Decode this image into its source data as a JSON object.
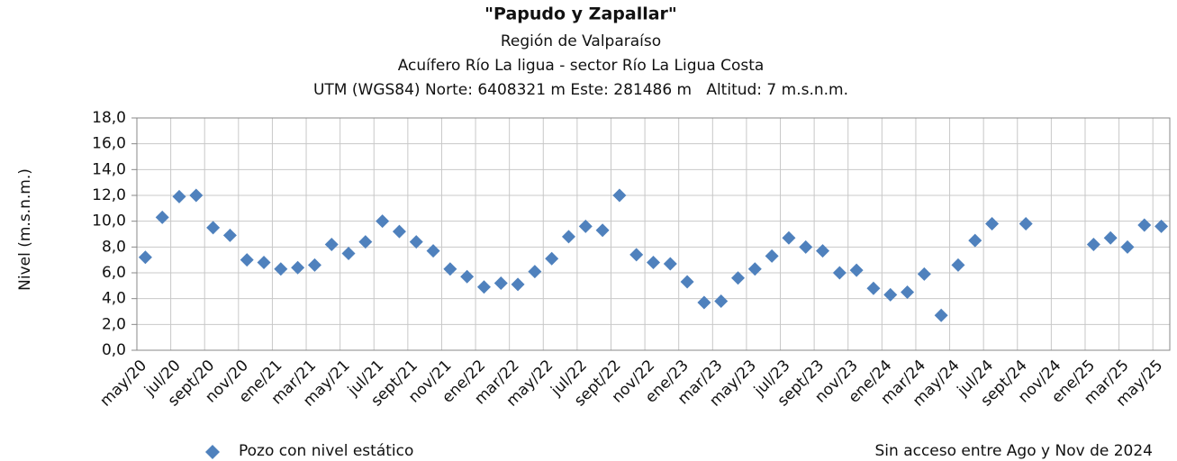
{
  "chart_data": {
    "type": "scatter",
    "title": "\"Papudo y Zapallar\"",
    "subtitles": [
      "Región de Valparaíso",
      "Acuífero Río La ligua - sector Río La Ligua Costa",
      "UTM (WGS84) Norte: 6408321 m Este: 281486 m   Altitud: 7 m.s.n.m."
    ],
    "y_label": "Nivel (m.s.n.m.)",
    "note": "Sin acceso entre Ago y Nov de 2024",
    "categories": [
      "may/20",
      null,
      "jul/20",
      null,
      "sept/20",
      null,
      "nov/20",
      null,
      "ene/21",
      null,
      "mar/21",
      null,
      "may/21",
      null,
      "jul/21",
      null,
      "sept/21",
      null,
      "nov/21",
      null,
      "ene/22",
      null,
      "mar/22",
      null,
      "may/22",
      null,
      "jul/22",
      null,
      "sept/22",
      null,
      "nov/22",
      null,
      "ene/23",
      null,
      "mar/23",
      null,
      "may/23",
      null,
      "jul/23",
      null,
      "sept/23",
      null,
      "nov/23",
      null,
      "ene/24",
      null,
      "mar/24",
      null,
      "may/24",
      null,
      "jul/24",
      null,
      "sept/24",
      null,
      "nov/24",
      null,
      "ene/25",
      null,
      "mar/25",
      null,
      "may/25"
    ],
    "series": [
      {
        "name": "Pozo con nivel estático",
        "color": "#4f81bd",
        "values": [
          7.2,
          10.3,
          11.9,
          12.0,
          9.5,
          8.9,
          7.0,
          6.8,
          6.3,
          6.4,
          6.6,
          8.2,
          7.5,
          8.4,
          10.0,
          9.2,
          8.4,
          7.7,
          6.3,
          5.7,
          4.9,
          5.2,
          5.1,
          6.1,
          7.1,
          8.8,
          9.6,
          9.3,
          12.0,
          7.4,
          6.8,
          6.7,
          5.3,
          3.7,
          3.8,
          5.6,
          6.3,
          7.3,
          8.7,
          8.0,
          7.7,
          6.0,
          6.2,
          4.8,
          4.3,
          4.5,
          5.9,
          2.7,
          6.6,
          8.5,
          9.8,
          null,
          9.8,
          null,
          null,
          null,
          8.2,
          8.7,
          8.0,
          9.7,
          9.6
        ]
      }
    ],
    "ylim": [
      0,
      18
    ],
    "yticks": [
      {
        "value": 0,
        "label": "0,0"
      },
      {
        "value": 2,
        "label": "2,0"
      },
      {
        "value": 4,
        "label": "4,0"
      },
      {
        "value": 6,
        "label": "6,0"
      },
      {
        "value": 8,
        "label": "8,0"
      },
      {
        "value": 10,
        "label": "10,0"
      },
      {
        "value": 12,
        "label": "12,0"
      },
      {
        "value": 14,
        "label": "14,0"
      },
      {
        "value": 16,
        "label": "16,0"
      },
      {
        "value": 18,
        "label": "18,0"
      }
    ],
    "grid": true
  }
}
